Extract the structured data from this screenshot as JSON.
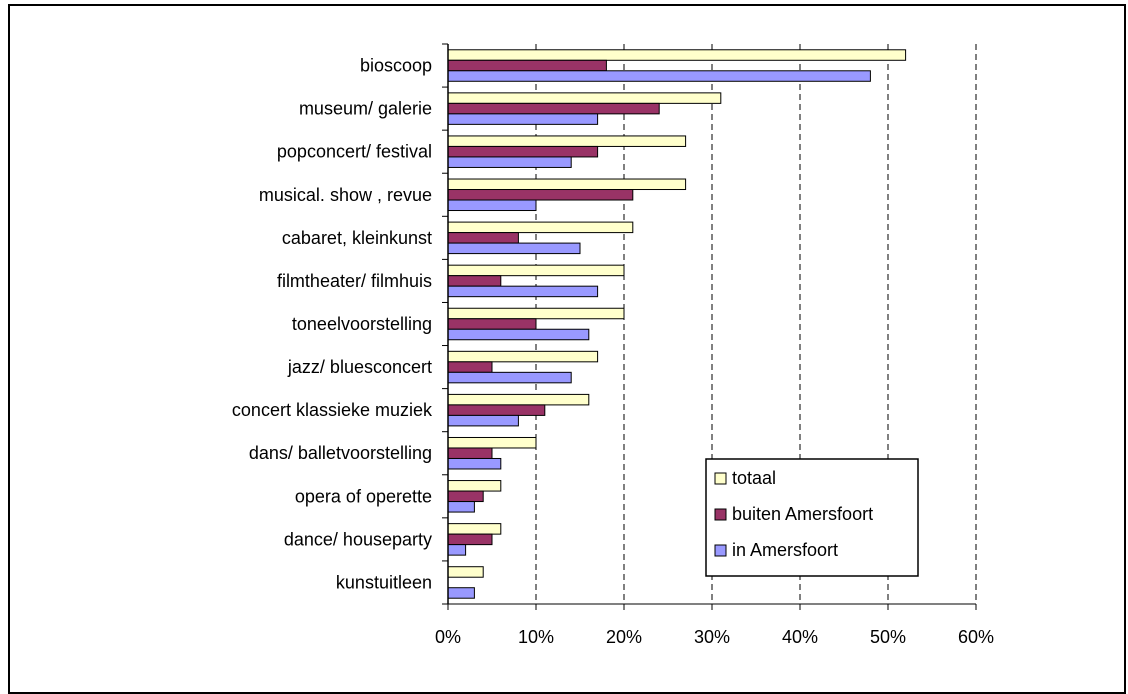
{
  "chart_data": {
    "type": "bar",
    "orientation": "horizontal",
    "categories": [
      "bioscoop",
      "museum/ galerie",
      "popconcert/ festival",
      "musical. show , revue",
      "cabaret, kleinkunst",
      "filmtheater/ filmhuis",
      "toneelvoorstelling",
      "jazz/ bluesconcert",
      "concert klassieke muziek",
      "dans/ balletvoorstelling",
      "opera of operette",
      "dance/ houseparty",
      "kunstuitleen"
    ],
    "series": [
      {
        "name": "totaal",
        "color": "#FFFFCC",
        "values": [
          52,
          31,
          27,
          27,
          21,
          20,
          20,
          17,
          16,
          10,
          6,
          6,
          4
        ]
      },
      {
        "name": "buiten Amersfoort",
        "color": "#993366",
        "values": [
          18,
          24,
          17,
          21,
          8,
          6,
          10,
          5,
          11,
          5,
          4,
          5,
          0
        ]
      },
      {
        "name": "in Amersfoort",
        "color": "#9999FF",
        "values": [
          48,
          17,
          14,
          10,
          15,
          17,
          16,
          14,
          8,
          6,
          3,
          2,
          3
        ]
      }
    ],
    "xlim": [
      0,
      60
    ],
    "xticks": [
      "0%",
      "10%",
      "20%",
      "30%",
      "40%",
      "50%",
      "60%"
    ],
    "unit": "%",
    "grid": "vertical dashed",
    "legend_position": "bottom-right inside plot",
    "title": "",
    "xlabel": "",
    "ylabel": ""
  }
}
